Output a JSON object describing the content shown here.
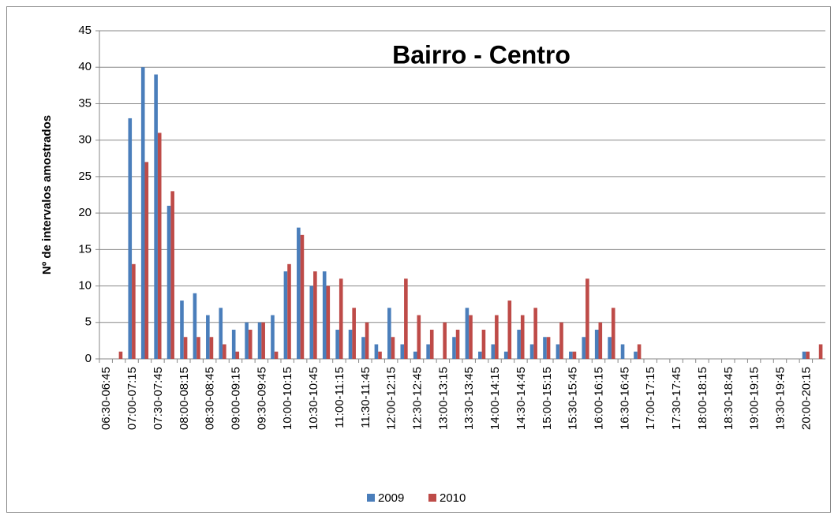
{
  "chart_data": {
    "type": "bar",
    "title": "Bairro - Centro",
    "y_label": "Nº de intervalos amostrados",
    "categories": [
      "06:30-06:45",
      null,
      "07:00-07:15",
      null,
      "07:30-07:45",
      null,
      "08:00-08:15",
      null,
      "08:30-08:45",
      null,
      "09:00-09:15",
      null,
      "09:30-09:45",
      null,
      "10:00-10:15",
      null,
      "10:30-10:45",
      null,
      "11:00-11:15",
      null,
      "11:30-11:45",
      null,
      "12:00-12:15",
      null,
      "12:30-12:45",
      null,
      "13:00-13:15",
      null,
      "13:30-13:45",
      null,
      "14:00-14:15",
      null,
      "14:30-14:45",
      null,
      "15:00-15:15",
      null,
      "15:30-15:45",
      null,
      "16:00-16:15",
      null,
      "16:30-16:45",
      null,
      "17:00-17:15",
      null,
      "17:30-17:45",
      null,
      "18:00-18:15",
      null,
      "18:30-18:45",
      null,
      "19:00-19:15",
      null,
      "19:30-19:45",
      null,
      "20:00-20:15",
      null
    ],
    "series": [
      {
        "name": "2009",
        "color": "#4a7ebb",
        "values": [
          0,
          0,
          33,
          40,
          39,
          21,
          8,
          9,
          6,
          7,
          4,
          5,
          5,
          6,
          12,
          18,
          10,
          12,
          4,
          4,
          3,
          2,
          7,
          2,
          1,
          2,
          0,
          3,
          7,
          1,
          2,
          1,
          4,
          2,
          3,
          2,
          1,
          3,
          4,
          3,
          2,
          1,
          0,
          0,
          0,
          0,
          0,
          0,
          0,
          0,
          0,
          0,
          0,
          0,
          1,
          0
        ]
      },
      {
        "name": "2010",
        "color": "#be4b48",
        "values": [
          0,
          1,
          13,
          27,
          31,
          23,
          3,
          3,
          3,
          2,
          1,
          4,
          5,
          1,
          13,
          17,
          12,
          10,
          11,
          7,
          5,
          1,
          3,
          11,
          6,
          4,
          5,
          4,
          6,
          4,
          6,
          8,
          6,
          7,
          3,
          5,
          1,
          11,
          5,
          7,
          0,
          2,
          0,
          0,
          0,
          0,
          0,
          0,
          0,
          0,
          0,
          0,
          0,
          0,
          1,
          2
        ]
      }
    ],
    "ylim": [
      0,
      45
    ],
    "yticks": [
      0,
      5,
      10,
      15,
      20,
      25,
      30,
      35,
      40,
      45
    ],
    "grid": true,
    "legend": "bottom"
  }
}
